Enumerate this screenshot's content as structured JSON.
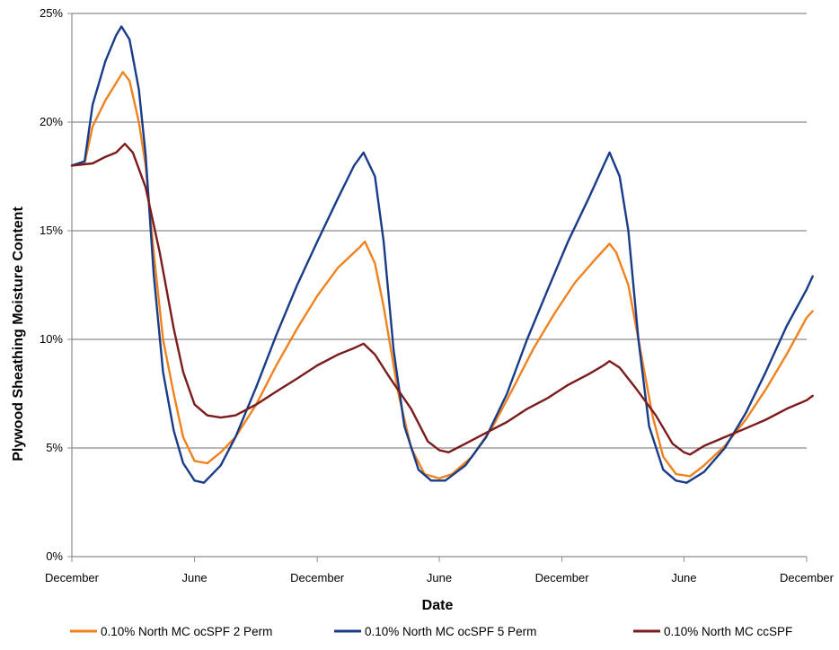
{
  "chart_data": {
    "type": "line",
    "xlabel": "Date",
    "ylabel": "Plywood Sheathing Moisture Content",
    "xlim": [
      "2011-12-01",
      "2014-12-01"
    ],
    "ylim": [
      0,
      25
    ],
    "yticks": [
      0,
      5,
      10,
      15,
      20,
      25
    ],
    "ytick_labels": [
      "0%",
      "5%",
      "10%",
      "15%",
      "20%",
      "25%"
    ],
    "xticks": [
      "2011-12-01",
      "2012-06-01",
      "2012-12-01",
      "2013-06-01",
      "2013-12-01",
      "2014-06-01",
      "2014-12-01"
    ],
    "xtick_labels": [
      "December",
      "June",
      "December",
      "June",
      "December",
      "June",
      "December"
    ],
    "grid": "horizontal",
    "legend_position": "bottom",
    "series": [
      {
        "name": "0.10% North MC ocSPF 2 Perm",
        "color": "#f0821e",
        "points": [
          [
            "2011-12-01",
            18.0
          ],
          [
            "2011-12-20",
            18.1
          ],
          [
            "2012-01-01",
            19.8
          ],
          [
            "2012-01-20",
            21.0
          ],
          [
            "2012-02-05",
            21.8
          ],
          [
            "2012-02-15",
            22.3
          ],
          [
            "2012-02-25",
            21.9
          ],
          [
            "2012-03-10",
            20.0
          ],
          [
            "2012-03-20",
            18.0
          ],
          [
            "2012-04-01",
            14.0
          ],
          [
            "2012-04-15",
            10.0
          ],
          [
            "2012-05-01",
            7.5
          ],
          [
            "2012-05-15",
            5.5
          ],
          [
            "2012-06-01",
            4.4
          ],
          [
            "2012-06-20",
            4.3
          ],
          [
            "2012-07-10",
            4.8
          ],
          [
            "2012-08-01",
            5.5
          ],
          [
            "2012-09-01",
            7.0
          ],
          [
            "2012-10-01",
            8.8
          ],
          [
            "2012-11-01",
            10.5
          ],
          [
            "2012-12-01",
            12.0
          ],
          [
            "2013-01-01",
            13.3
          ],
          [
            "2013-02-01",
            14.2
          ],
          [
            "2013-02-10",
            14.5
          ],
          [
            "2013-02-25",
            13.5
          ],
          [
            "2013-03-10",
            11.5
          ],
          [
            "2013-04-01",
            7.5
          ],
          [
            "2013-04-20",
            5.0
          ],
          [
            "2013-05-10",
            3.8
          ],
          [
            "2013-06-01",
            3.6
          ],
          [
            "2013-06-20",
            3.8
          ],
          [
            "2013-07-20",
            4.6
          ],
          [
            "2013-08-20",
            6.0
          ],
          [
            "2013-09-20",
            7.8
          ],
          [
            "2013-10-20",
            9.6
          ],
          [
            "2013-11-20",
            11.2
          ],
          [
            "2013-12-20",
            12.6
          ],
          [
            "2014-01-20",
            13.7
          ],
          [
            "2014-02-10",
            14.4
          ],
          [
            "2014-02-20",
            14.0
          ],
          [
            "2014-03-10",
            12.5
          ],
          [
            "2014-03-25",
            10.0
          ],
          [
            "2014-04-15",
            6.5
          ],
          [
            "2014-05-01",
            4.6
          ],
          [
            "2014-05-20",
            3.8
          ],
          [
            "2014-06-10",
            3.7
          ],
          [
            "2014-07-01",
            4.2
          ],
          [
            "2014-08-01",
            5.1
          ],
          [
            "2014-09-01",
            6.3
          ],
          [
            "2014-10-01",
            7.7
          ],
          [
            "2014-11-01",
            9.3
          ],
          [
            "2014-12-01",
            11.0
          ],
          [
            "2014-12-10",
            11.3
          ]
        ]
      },
      {
        "name": "0.10% North MC ocSPF 5 Perm",
        "color": "#183c87",
        "points": [
          [
            "2011-12-01",
            18.0
          ],
          [
            "2011-12-20",
            18.2
          ],
          [
            "2012-01-01",
            20.8
          ],
          [
            "2012-01-20",
            22.8
          ],
          [
            "2012-02-05",
            24.0
          ],
          [
            "2012-02-13",
            24.4
          ],
          [
            "2012-02-25",
            23.8
          ],
          [
            "2012-03-10",
            21.5
          ],
          [
            "2012-03-20",
            18.5
          ],
          [
            "2012-04-01",
            13.0
          ],
          [
            "2012-04-15",
            8.5
          ],
          [
            "2012-05-01",
            5.8
          ],
          [
            "2012-05-15",
            4.3
          ],
          [
            "2012-06-01",
            3.5
          ],
          [
            "2012-06-15",
            3.4
          ],
          [
            "2012-07-10",
            4.2
          ],
          [
            "2012-08-01",
            5.5
          ],
          [
            "2012-09-01",
            7.8
          ],
          [
            "2012-10-01",
            10.2
          ],
          [
            "2012-11-01",
            12.5
          ],
          [
            "2012-12-01",
            14.5
          ],
          [
            "2013-01-01",
            16.5
          ],
          [
            "2013-01-25",
            18.0
          ],
          [
            "2013-02-08",
            18.6
          ],
          [
            "2013-02-25",
            17.5
          ],
          [
            "2013-03-10",
            14.5
          ],
          [
            "2013-03-25",
            9.5
          ],
          [
            "2013-04-10",
            6.0
          ],
          [
            "2013-05-01",
            4.0
          ],
          [
            "2013-05-20",
            3.5
          ],
          [
            "2013-06-10",
            3.5
          ],
          [
            "2013-07-10",
            4.2
          ],
          [
            "2013-08-10",
            5.5
          ],
          [
            "2013-09-10",
            7.5
          ],
          [
            "2013-10-10",
            10.0
          ],
          [
            "2013-11-10",
            12.3
          ],
          [
            "2013-12-10",
            14.5
          ],
          [
            "2014-01-10",
            16.5
          ],
          [
            "2014-02-01",
            18.0
          ],
          [
            "2014-02-10",
            18.6
          ],
          [
            "2014-02-25",
            17.5
          ],
          [
            "2014-03-10",
            15.0
          ],
          [
            "2014-03-25",
            10.0
          ],
          [
            "2014-04-10",
            6.0
          ],
          [
            "2014-05-01",
            4.0
          ],
          [
            "2014-05-20",
            3.5
          ],
          [
            "2014-06-05",
            3.4
          ],
          [
            "2014-07-01",
            3.9
          ],
          [
            "2014-08-01",
            5.0
          ],
          [
            "2014-09-01",
            6.6
          ],
          [
            "2014-10-01",
            8.5
          ],
          [
            "2014-11-01",
            10.6
          ],
          [
            "2014-12-01",
            12.3
          ],
          [
            "2014-12-10",
            12.9
          ]
        ]
      },
      {
        "name": "0.10% North MC ccSPF",
        "color": "#7b1b1b",
        "points": [
          [
            "2011-12-01",
            18.0
          ],
          [
            "2012-01-01",
            18.1
          ],
          [
            "2012-01-20",
            18.4
          ],
          [
            "2012-02-05",
            18.6
          ],
          [
            "2012-02-18",
            19.0
          ],
          [
            "2012-03-01",
            18.6
          ],
          [
            "2012-03-20",
            17.0
          ],
          [
            "2012-04-10",
            14.0
          ],
          [
            "2012-05-01",
            10.5
          ],
          [
            "2012-05-15",
            8.5
          ],
          [
            "2012-06-01",
            7.0
          ],
          [
            "2012-06-20",
            6.5
          ],
          [
            "2012-07-10",
            6.4
          ],
          [
            "2012-08-01",
            6.5
          ],
          [
            "2012-09-01",
            7.0
          ],
          [
            "2012-10-01",
            7.6
          ],
          [
            "2012-11-01",
            8.2
          ],
          [
            "2012-12-01",
            8.8
          ],
          [
            "2013-01-01",
            9.3
          ],
          [
            "2013-01-25",
            9.6
          ],
          [
            "2013-02-08",
            9.8
          ],
          [
            "2013-02-25",
            9.3
          ],
          [
            "2013-03-20",
            8.2
          ],
          [
            "2013-04-20",
            6.8
          ],
          [
            "2013-05-15",
            5.3
          ],
          [
            "2013-06-01",
            4.9
          ],
          [
            "2013-06-15",
            4.8
          ],
          [
            "2013-07-10",
            5.2
          ],
          [
            "2013-08-10",
            5.7
          ],
          [
            "2013-09-10",
            6.2
          ],
          [
            "2013-10-10",
            6.8
          ],
          [
            "2013-11-10",
            7.3
          ],
          [
            "2013-12-10",
            7.9
          ],
          [
            "2014-01-10",
            8.4
          ],
          [
            "2014-02-01",
            8.8
          ],
          [
            "2014-02-10",
            9.0
          ],
          [
            "2014-02-25",
            8.7
          ],
          [
            "2014-03-20",
            7.8
          ],
          [
            "2014-04-20",
            6.5
          ],
          [
            "2014-05-15",
            5.2
          ],
          [
            "2014-06-01",
            4.8
          ],
          [
            "2014-06-10",
            4.7
          ],
          [
            "2014-07-01",
            5.1
          ],
          [
            "2014-08-01",
            5.5
          ],
          [
            "2014-09-01",
            5.9
          ],
          [
            "2014-10-01",
            6.3
          ],
          [
            "2014-11-01",
            6.8
          ],
          [
            "2014-12-01",
            7.2
          ],
          [
            "2014-12-10",
            7.4
          ]
        ]
      }
    ]
  }
}
